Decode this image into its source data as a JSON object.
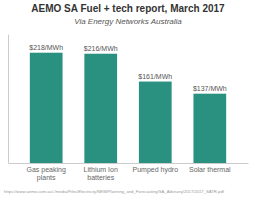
{
  "chart_data": {
    "type": "bar",
    "title": "AEMO SA Fuel + tech report, March 2017",
    "subtitle": "Via Energy Networks Australia",
    "annotations": [
      "https://www.aemo.com.au/-/media/Files/Electricity/NEM/Planning_and_Forecasting/SA_Advisory/2017/2017_SATR.pdf"
    ],
    "categories": [
      "Gas peaking plants",
      "Lithium Ion batteries",
      "Pumped hydro",
      "Solar thermal"
    ],
    "values": [
      218,
      216,
      161,
      137
    ],
    "value_labels": [
      "$218/MWh",
      "$216/MWh",
      "$161/MWh",
      "$137/MWh"
    ],
    "data_labels": true,
    "color": "#2a9080",
    "ylim": [
      0,
      255
    ],
    "grid": false,
    "tick_labels": "x"
  }
}
